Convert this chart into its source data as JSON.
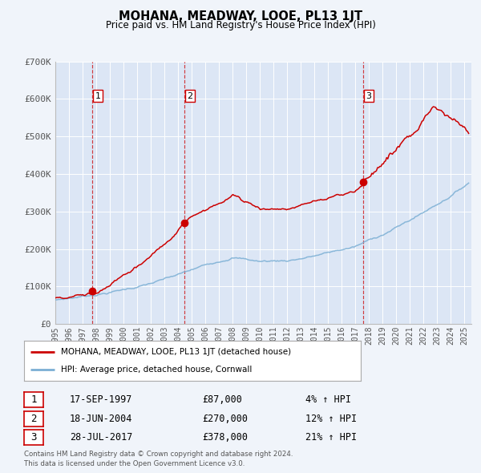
{
  "title": "MOHANA, MEADWAY, LOOE, PL13 1JT",
  "subtitle": "Price paid vs. HM Land Registry's House Price Index (HPI)",
  "legend_label_red": "MOHANA, MEADWAY, LOOE, PL13 1JT (detached house)",
  "legend_label_blue": "HPI: Average price, detached house, Cornwall",
  "transactions": [
    {
      "num": 1,
      "date": "17-SEP-1997",
      "year": 1997.71,
      "price": 87000,
      "hpi_pct": "4%"
    },
    {
      "num": 2,
      "date": "18-JUN-2004",
      "year": 2004.46,
      "price": 270000,
      "hpi_pct": "12%"
    },
    {
      "num": 3,
      "date": "28-JUL-2017",
      "year": 2017.56,
      "price": 378000,
      "hpi_pct": "21%"
    }
  ],
  "footnote1": "Contains HM Land Registry data © Crown copyright and database right 2024.",
  "footnote2": "This data is licensed under the Open Government Licence v3.0.",
  "fig_bg_color": "#f0f4fa",
  "plot_bg_color": "#dce6f5",
  "grid_color": "#ffffff",
  "red_color": "#cc0000",
  "blue_color": "#7bafd4",
  "ylim": [
    0,
    700000
  ],
  "xlim_start": 1995.0,
  "xlim_end": 2025.5,
  "yticks": [
    0,
    100000,
    200000,
    300000,
    400000,
    500000,
    600000,
    700000
  ],
  "ytick_labels": [
    "£0",
    "£100K",
    "£200K",
    "£300K",
    "£400K",
    "£500K",
    "£600K",
    "£700K"
  ],
  "xticks": [
    1995,
    1996,
    1997,
    1998,
    1999,
    2000,
    2001,
    2002,
    2003,
    2004,
    2005,
    2006,
    2007,
    2008,
    2009,
    2010,
    2011,
    2012,
    2013,
    2014,
    2015,
    2016,
    2017,
    2018,
    2019,
    2020,
    2021,
    2022,
    2023,
    2024,
    2025
  ]
}
